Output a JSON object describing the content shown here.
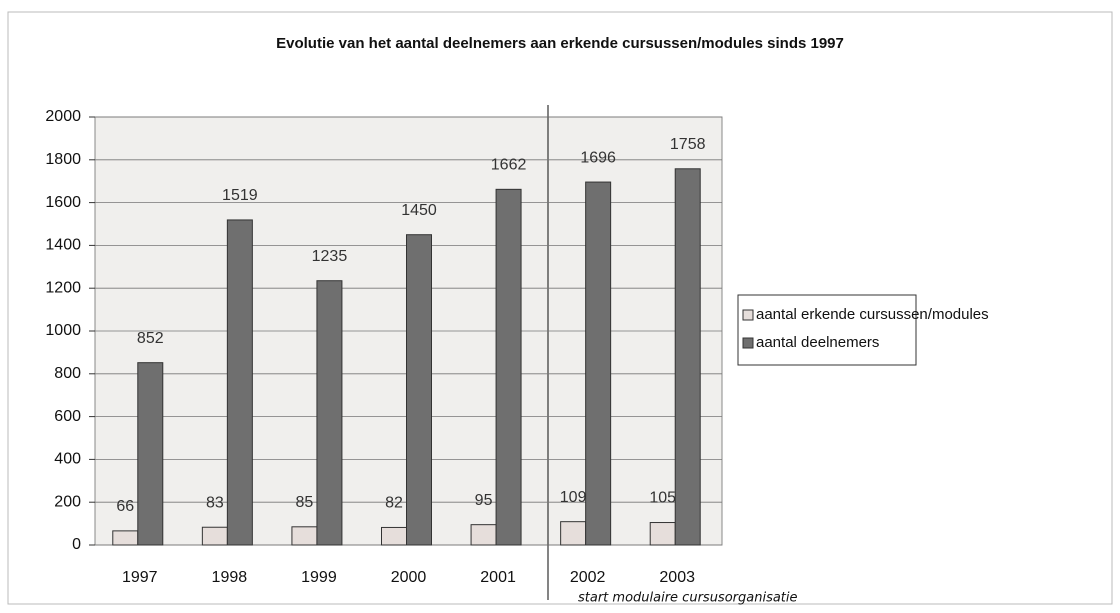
{
  "chart_data": {
    "type": "bar",
    "title": "Evolutie van het aantal deelnemers aan erkende cursussen/modules sinds 1997",
    "categories": [
      "1997",
      "1998",
      "1999",
      "2000",
      "2001",
      "2002",
      "2003"
    ],
    "series": [
      {
        "name": "aantal erkende cursussen/modules",
        "color": "#e6dedb",
        "values": [
          66,
          83,
          85,
          82,
          95,
          109,
          105
        ]
      },
      {
        "name": "aantal deelnemers",
        "color": "#6f6f6f",
        "values": [
          852,
          1519,
          1235,
          1450,
          1662,
          1696,
          1758
        ]
      }
    ],
    "ylim": [
      0,
      2000
    ],
    "yticks": [
      0,
      200,
      400,
      600,
      800,
      1000,
      1200,
      1400,
      1600,
      1800,
      2000
    ],
    "grid": true,
    "legend": "right",
    "annotation": "start modulaire cursusorganisatie"
  }
}
